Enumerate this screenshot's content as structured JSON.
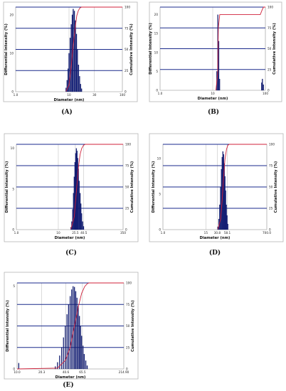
{
  "chart_data": [
    {
      "type": "bar",
      "caption": "(A)",
      "xlabel": "Diameter (nm)",
      "ylabel": "Differential Intensity (%)",
      "y2label": "Cumulative Intensity (%)",
      "x_scale": "log",
      "xlim": [
        1.0,
        100
      ],
      "x_ticks": [
        "1.0",
        "10",
        "30",
        "100"
      ],
      "ylim": [
        0,
        22
      ],
      "y_ticks": [
        "0",
        "10",
        "20"
      ],
      "y2_ticks": [
        "0",
        "25",
        "50",
        "75",
        "100"
      ],
      "series": [
        {
          "values": [
            [
              8.8,
              1.0
            ],
            [
              9.2,
              3.0
            ],
            [
              9.6,
              6.0
            ],
            [
              10.0,
              10.0
            ],
            [
              10.5,
              14.0
            ],
            [
              11.0,
              17.5
            ],
            [
              11.5,
              20.0
            ],
            [
              12.0,
              21.5
            ],
            [
              12.6,
              21.0
            ],
            [
              13.2,
              18.5
            ],
            [
              13.8,
              15.0
            ],
            [
              14.4,
              11.0
            ],
            [
              15.1,
              7.0
            ],
            [
              15.8,
              4.0
            ],
            [
              16.5,
              2.0
            ],
            [
              17.2,
              0.8
            ]
          ]
        },
        {
          "values": [
            [
              8.8,
              0.5
            ],
            [
              10.0,
              8.0
            ],
            [
              11.0,
              30.0
            ],
            [
              12.0,
              55.0
            ],
            [
              13.0,
              75.0
            ],
            [
              14.0,
              90.0
            ],
            [
              15.0,
              96.0
            ],
            [
              16.0,
              99.0
            ],
            [
              17.2,
              100.0
            ],
            [
              100,
              100.0
            ]
          ]
        }
      ]
    },
    {
      "type": "bar",
      "caption": "(B)",
      "xlabel": "Diameter (nm)",
      "ylabel": "Differential Intensity (%)",
      "y2label": "Cumulative Intensity (%)",
      "x_scale": "log",
      "xlim": [
        1.0,
        100
      ],
      "x_ticks": [
        "1.0",
        "10",
        "100"
      ],
      "ylim": [
        0,
        22
      ],
      "y_ticks": [
        "0",
        "5",
        "10",
        "15",
        "20"
      ],
      "y2_ticks": [
        "0",
        "25",
        "50",
        "75",
        "100"
      ],
      "series": [
        {
          "values": [
            [
              12.0,
              5.0
            ],
            [
              12.5,
              20.0
            ],
            [
              13.0,
              13.0
            ],
            [
              13.5,
              3.0
            ],
            [
              85.0,
              2.0
            ],
            [
              88.0,
              3.0
            ],
            [
              92.0,
              1.5
            ]
          ]
        },
        {
          "values": [
            [
              11.5,
              0.0
            ],
            [
              12.4,
              20.0
            ],
            [
              12.8,
              75.0
            ],
            [
              13.6,
              91.0
            ],
            [
              80.0,
              91.0
            ],
            [
              86.0,
              96.0
            ],
            [
              92.0,
              100.0
            ],
            [
              100,
              100.0
            ]
          ]
        }
      ]
    },
    {
      "type": "bar",
      "caption": "(C)",
      "xlabel": "Diameter (nm)",
      "ylabel": "Differential Intensity (%)",
      "y2label": "Cumulative Intensity (%)",
      "x_scale": "log",
      "xlim": [
        1.0,
        350
      ],
      "x_ticks": [
        "1.0",
        "10",
        "25.5",
        "40.5",
        "350"
      ],
      "ylim": [
        0,
        10.5
      ],
      "y_ticks": [
        "0",
        "5",
        "10"
      ],
      "y2_ticks": [
        "0",
        "25",
        "50",
        "75",
        "100"
      ],
      "series": [
        {
          "values": [
            [
              20.0,
              0.3
            ],
            [
              21.0,
              1.0
            ],
            [
              22.0,
              2.5
            ],
            [
              23.0,
              4.5
            ],
            [
              24.0,
              6.5
            ],
            [
              25.0,
              8.3
            ],
            [
              26.0,
              9.4
            ],
            [
              27.0,
              10.0
            ],
            [
              28.0,
              9.7
            ],
            [
              29.0,
              8.8
            ],
            [
              30.0,
              7.5
            ],
            [
              31.5,
              6.0
            ],
            [
              33.0,
              4.5
            ],
            [
              34.5,
              3.2
            ],
            [
              36.0,
              2.0
            ],
            [
              38.0,
              1.0
            ],
            [
              40.0,
              0.4
            ]
          ]
        },
        {
          "values": [
            [
              20.0,
              0.5
            ],
            [
              24.0,
              15.0
            ],
            [
              27.0,
              45.0
            ],
            [
              30.0,
              72.0
            ],
            [
              33.0,
              88.0
            ],
            [
              36.0,
              95.0
            ],
            [
              40.0,
              99.0
            ],
            [
              44.0,
              100.0
            ],
            [
              350,
              100.0
            ]
          ]
        }
      ]
    },
    {
      "type": "bar",
      "caption": "(D)",
      "xlabel": "Diameter (nm)",
      "ylabel": "Differential Intensity (%)",
      "y2label": "Cumulative Intensity (%)",
      "x_scale": "log",
      "xlim": [
        1.0,
        700
      ],
      "x_ticks": [
        "1.0",
        "15",
        "30.8",
        "58.1",
        "700.0"
      ],
      "ylim": [
        0,
        12
      ],
      "y_ticks": [
        "0",
        "5",
        "10"
      ],
      "y2_ticks": [
        "0",
        "25",
        "50",
        "75",
        "100"
      ],
      "series": [
        {
          "values": [
            [
              32.0,
              0.4
            ],
            [
              34.0,
              1.5
            ],
            [
              36.0,
              3.5
            ],
            [
              38.0,
              6.0
            ],
            [
              40.0,
              8.5
            ],
            [
              42.0,
              10.2
            ],
            [
              44.0,
              11.0
            ],
            [
              46.0,
              10.6
            ],
            [
              48.0,
              9.3
            ],
            [
              50.0,
              7.5
            ],
            [
              52.0,
              5.5
            ],
            [
              54.5,
              3.5
            ],
            [
              57.0,
              2.0
            ],
            [
              60.0,
              0.8
            ]
          ]
        },
        {
          "values": [
            [
              32.0,
              0.5
            ],
            [
              38.0,
              12.0
            ],
            [
              42.0,
              35.0
            ],
            [
              46.0,
              62.0
            ],
            [
              50.0,
              82.0
            ],
            [
              55.0,
              94.0
            ],
            [
              60.0,
              99.0
            ],
            [
              66.0,
              100.0
            ],
            [
              700,
              100.0
            ]
          ]
        }
      ]
    },
    {
      "type": "bar",
      "caption": "(E)",
      "xlabel": "Diameter (nm)",
      "ylabel": "Differential Intensity (%)",
      "y2label": "Cumulative Intensity (%)",
      "x_scale": "log",
      "xlim": [
        10.0,
        214.9
      ],
      "x_ticks": [
        "10.0",
        "20.3",
        "40.6",
        "65.5",
        "214.90"
      ],
      "ylim": [
        0,
        5.2
      ],
      "y_ticks": [
        "0",
        "5"
      ],
      "y2_ticks": [
        "0",
        "25",
        "50",
        "75",
        "100"
      ],
      "series": [
        {
          "values": [
            [
              10.5,
              0.35
            ],
            [
              30.0,
              0.15
            ],
            [
              32.0,
              0.4
            ],
            [
              34.0,
              0.8
            ],
            [
              36.0,
              1.3
            ],
            [
              38.0,
              1.9
            ],
            [
              40.0,
              2.6
            ],
            [
              42.0,
              3.3
            ],
            [
              44.0,
              3.9
            ],
            [
              46.0,
              4.4
            ],
            [
              48.0,
              4.8
            ],
            [
              50.0,
              5.0
            ],
            [
              52.0,
              4.95
            ],
            [
              54.0,
              4.7
            ],
            [
              56.0,
              4.3
            ],
            [
              58.0,
              3.8
            ],
            [
              60.0,
              3.2
            ],
            [
              62.0,
              2.6
            ],
            [
              64.0,
              2.0
            ],
            [
              66.5,
              1.4
            ],
            [
              69.0,
              0.9
            ],
            [
              72.0,
              0.5
            ],
            [
              75.0,
              0.2
            ]
          ]
        },
        {
          "values": [
            [
              10.0,
              0.0
            ],
            [
              32.0,
              1.0
            ],
            [
              40.0,
              10.0
            ],
            [
              46.0,
              25.0
            ],
            [
              52.0,
              50.0
            ],
            [
              58.0,
              72.0
            ],
            [
              64.0,
              88.0
            ],
            [
              70.0,
              96.0
            ],
            [
              76.0,
              99.5
            ],
            [
              80.0,
              100.0
            ],
            [
              214.9,
              100.0
            ]
          ]
        }
      ]
    }
  ]
}
